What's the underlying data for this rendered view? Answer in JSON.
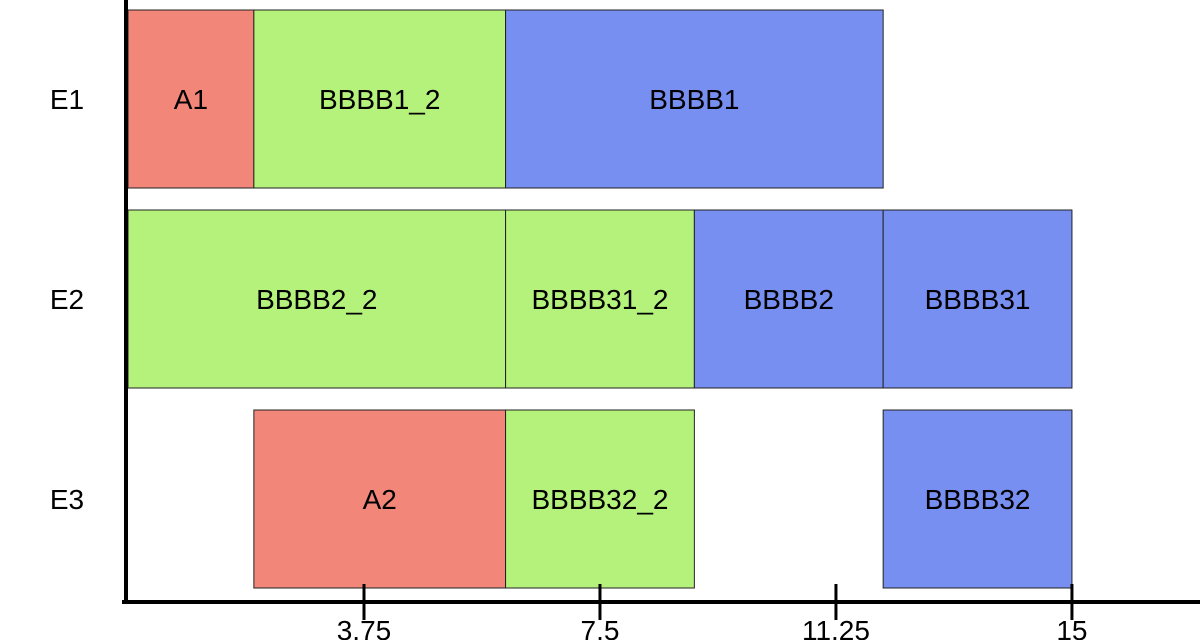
{
  "chart_data": {
    "type": "gantt",
    "title": "",
    "xlabel": "",
    "ylabel": "",
    "xlim": [
      0,
      17.0
    ],
    "x_ticks": [
      3.75,
      7.5,
      11.25,
      15
    ],
    "x_tick_labels": [
      "3.75",
      "7.5",
      "11.25",
      "15"
    ],
    "rows": [
      "E1",
      "E2",
      "E3"
    ],
    "colors": {
      "A": "#f28779",
      "BBBB_2": "#b5f27c",
      "BBBB": "#788ff2"
    },
    "tasks": [
      {
        "row": "E1",
        "label": "A1",
        "start": 0,
        "end": 2,
        "group": "A"
      },
      {
        "row": "E1",
        "label": "BBBB1_2",
        "start": 2,
        "end": 6,
        "group": "BBBB_2"
      },
      {
        "row": "E1",
        "label": "BBBB1",
        "start": 6,
        "end": 12,
        "group": "BBBB"
      },
      {
        "row": "E2",
        "label": "BBBB2_2",
        "start": 0,
        "end": 6,
        "group": "BBBB_2"
      },
      {
        "row": "E2",
        "label": "BBBB31_2",
        "start": 6,
        "end": 9,
        "group": "BBBB_2"
      },
      {
        "row": "E2",
        "label": "BBBB2",
        "start": 9,
        "end": 12,
        "group": "BBBB"
      },
      {
        "row": "E2",
        "label": "BBBB31",
        "start": 12,
        "end": 15,
        "group": "BBBB"
      },
      {
        "row": "E3",
        "label": "A2",
        "start": 2,
        "end": 6,
        "group": "A"
      },
      {
        "row": "E3",
        "label": "BBBB32_2",
        "start": 6,
        "end": 9,
        "group": "BBBB_2"
      },
      {
        "row": "E3",
        "label": "BBBB32",
        "start": 12,
        "end": 15,
        "group": "BBBB"
      }
    ]
  }
}
